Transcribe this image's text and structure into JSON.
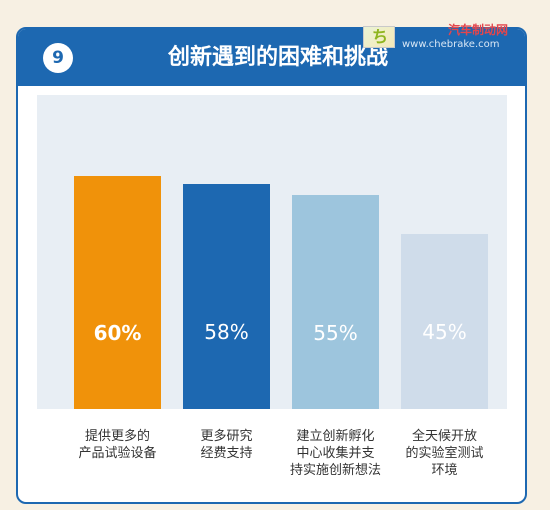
{
  "header": {
    "badge_number": "9",
    "title": "创新遇到的困难和挑战"
  },
  "watermark": {
    "site_name": "汽车制动网",
    "url": "www.chebrake.com",
    "logo_glyph": "ち"
  },
  "colors": {
    "header_bg": "#1d68b1",
    "plot_bg": "#e8eef4",
    "page_bg": "#f7f0e3"
  },
  "chart_data": {
    "type": "bar",
    "title": "创新遇到的困难和挑战",
    "categories": [
      "提供更多的\n产品试验设备",
      "更多研究\n经费支持",
      "建立创新孵化\n中心收集并支\n持实施创新想法",
      "全天候开放\n的实验室测试\n环境"
    ],
    "values": [
      60,
      58,
      55,
      45
    ],
    "value_labels": [
      "60%",
      "58%",
      "55%",
      "45%"
    ],
    "bar_colors": [
      "#f0920a",
      "#1d68b1",
      "#9dc5dd",
      "#cfdcea"
    ],
    "ylim": [
      0,
      80
    ],
    "grid": false
  }
}
